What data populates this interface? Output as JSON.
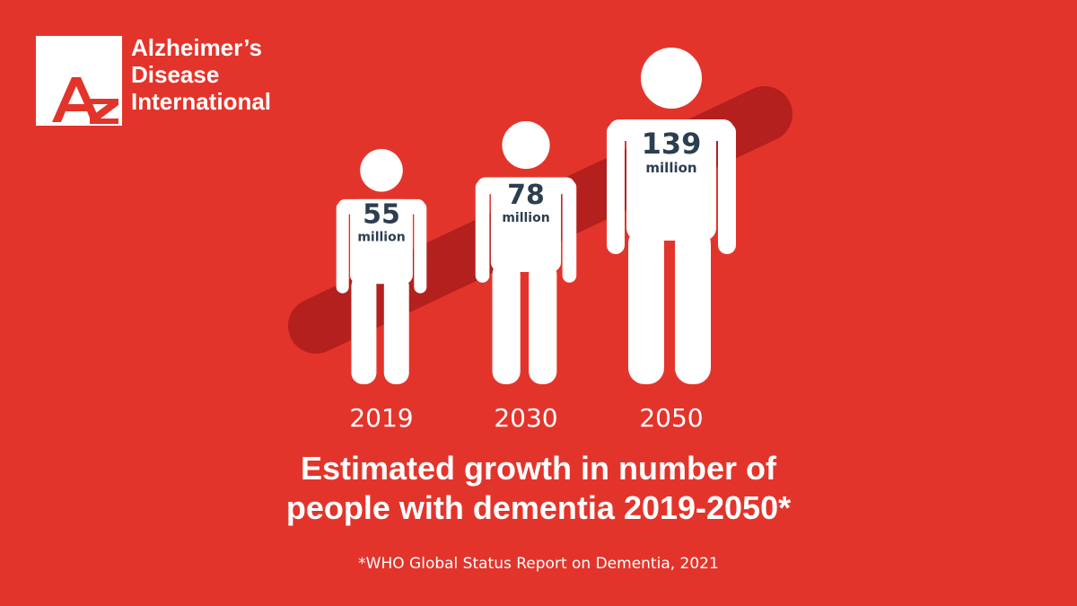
{
  "logo": {
    "lines": [
      "Alzheimer’s",
      "Disease",
      "International"
    ],
    "mark_letters": "AZ"
  },
  "colors": {
    "background": "#e3342b",
    "trend_bar": "#b3201d",
    "figure": "#ffffff",
    "label_text": "#2c3e50"
  },
  "chart_data": {
    "type": "bar",
    "categories": [
      "2019",
      "2030",
      "2050"
    ],
    "values": [
      55,
      78,
      139
    ],
    "value_labels": [
      "55",
      "78",
      "139"
    ],
    "unit": "million",
    "title": "Estimated growth in number of people with dementia 2019-2050*",
    "title_lines": [
      "Estimated growth in number of",
      "people with dementia 2019-2050*"
    ],
    "xlabel": "",
    "ylabel": ""
  },
  "source": "*WHO Global Status Report on Dementia, 2021"
}
